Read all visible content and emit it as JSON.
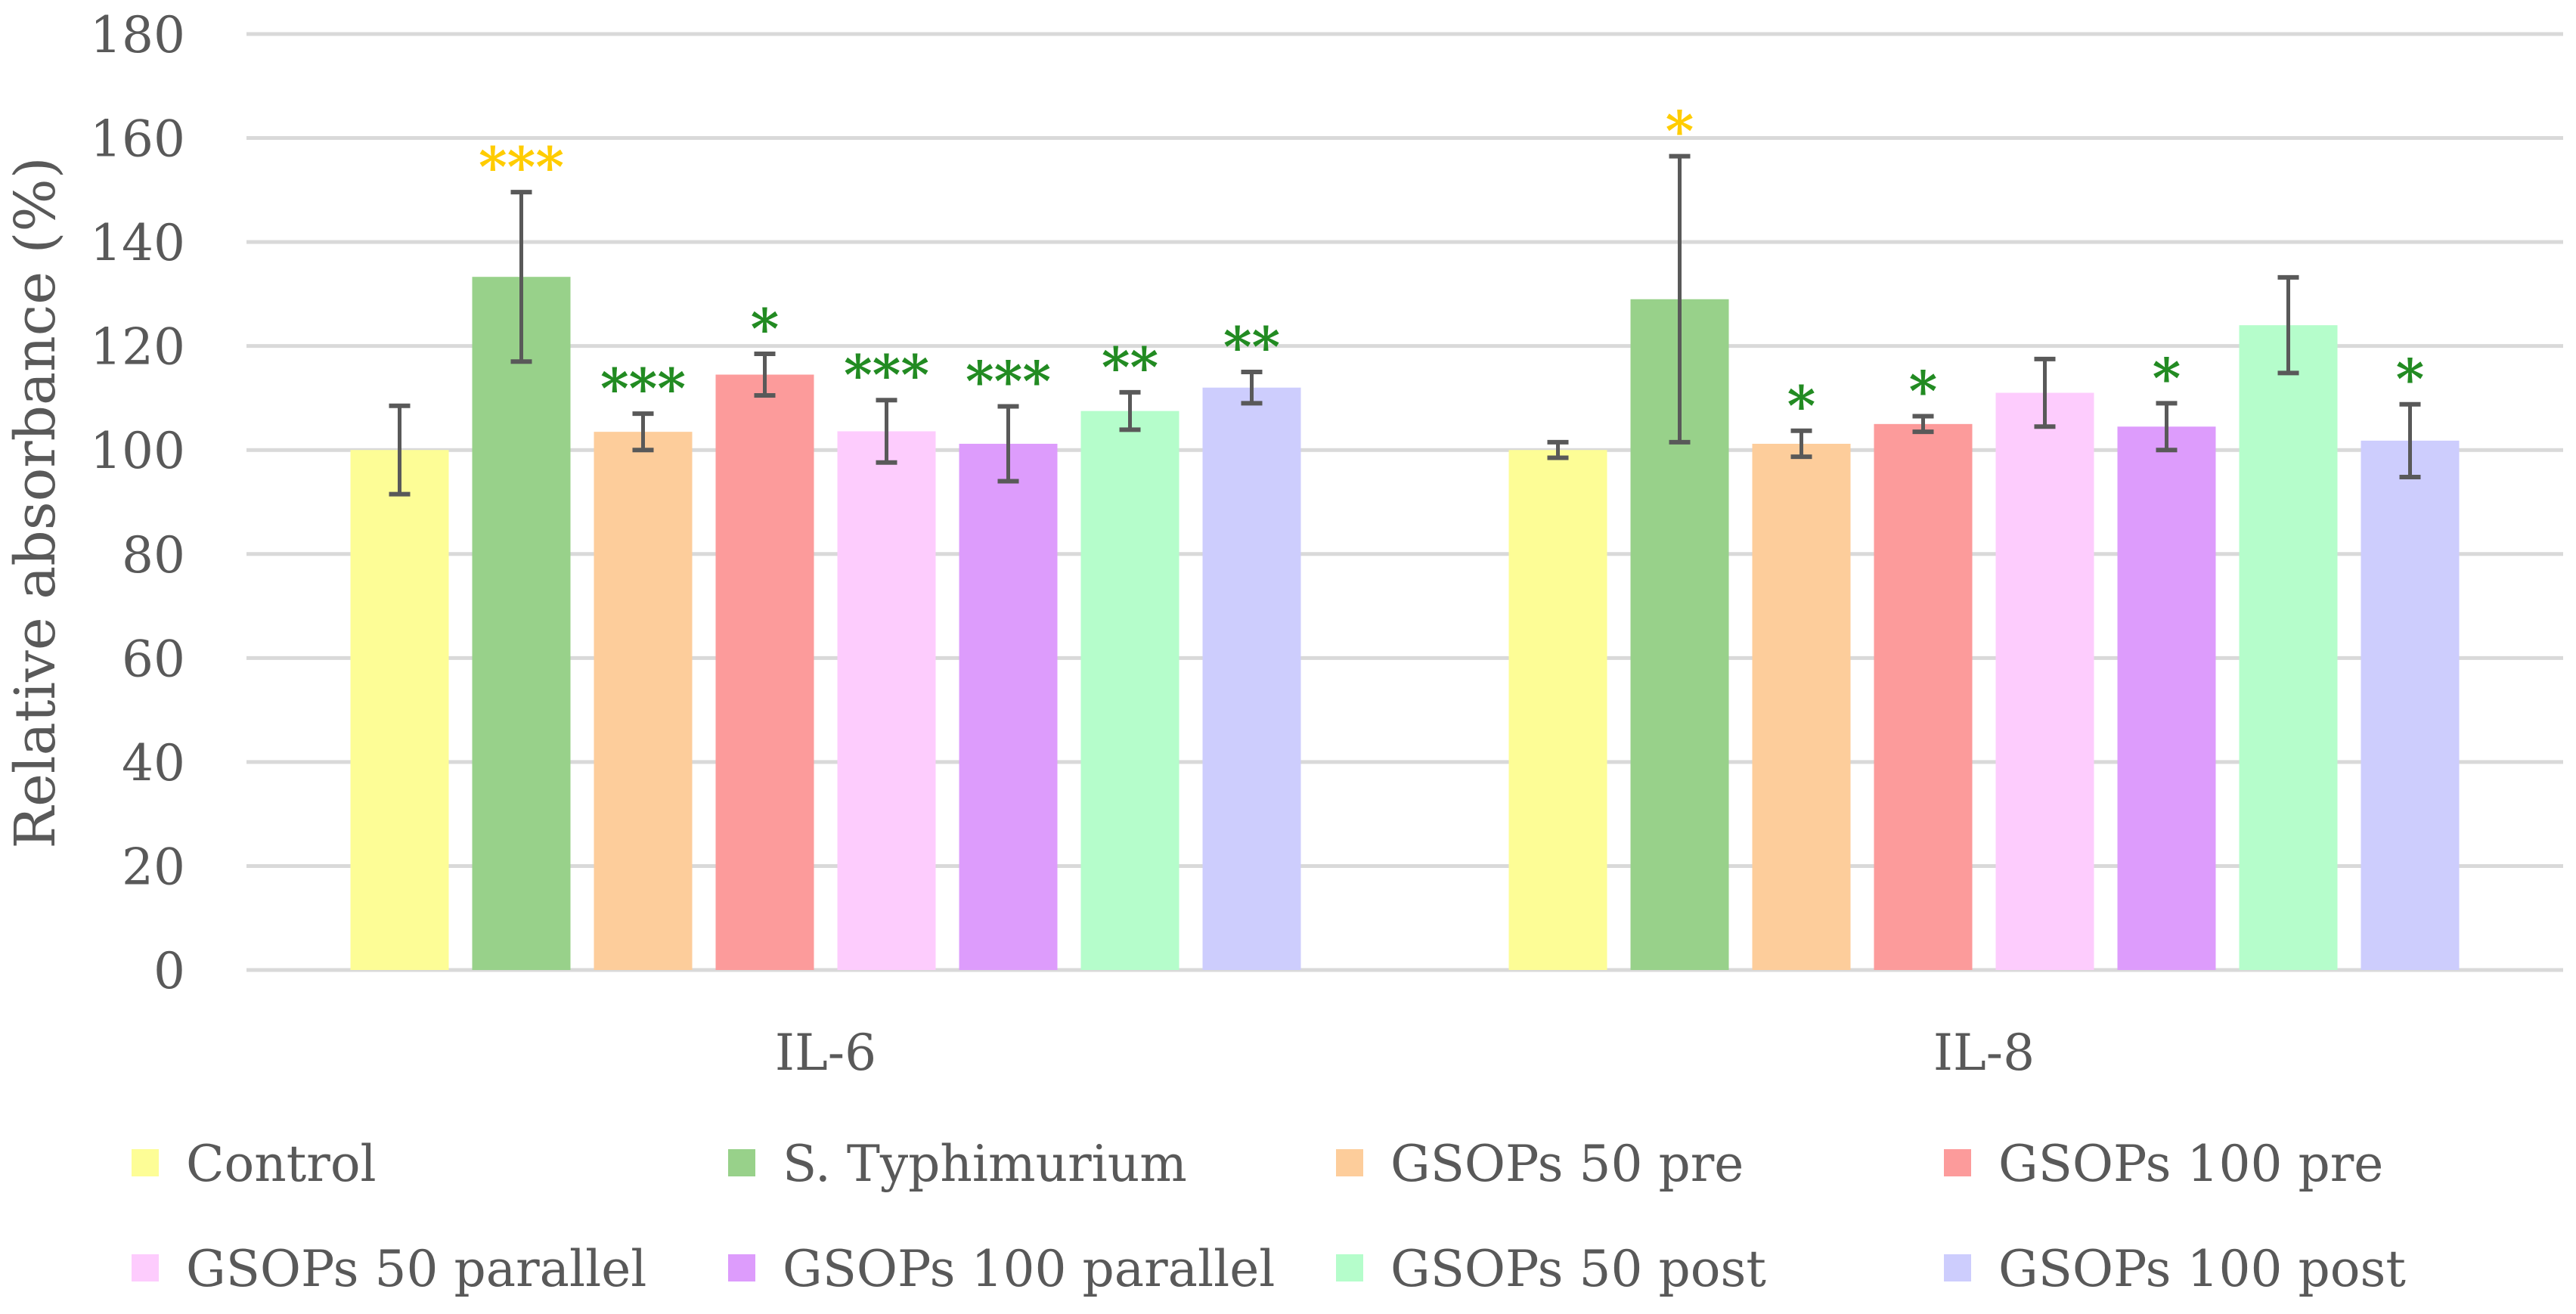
{
  "chart_data": {
    "type": "bar",
    "title": "",
    "xlabel": "",
    "ylabel": "Relative absorbance (%)",
    "ylim": [
      0,
      180
    ],
    "yticks": [
      0,
      20,
      40,
      60,
      80,
      100,
      120,
      140,
      160,
      180
    ],
    "grid": true,
    "legend_position": "bottom",
    "categories": [
      "IL-6",
      "IL-8"
    ],
    "series": [
      {
        "name": "Control",
        "color": "#FDFD96",
        "values": [
          100,
          100
        ],
        "errors": [
          8.5,
          1.5
        ],
        "annotations": [
          "",
          ""
        ],
        "annotation_colors": [
          "",
          ""
        ]
      },
      {
        "name": "S. Typhimurium",
        "color": "#98D18A",
        "values": [
          133.3,
          129
        ],
        "errors": [
          16.3,
          27.5
        ],
        "annotations": [
          "***",
          "*"
        ],
        "annotation_colors": [
          "#FFCC00",
          "#FFCC00"
        ]
      },
      {
        "name": "GSOPs 50 pre",
        "color": "#FDCD9B",
        "values": [
          103.5,
          101.2
        ],
        "errors": [
          3.5,
          2.5
        ],
        "annotations": [
          "***",
          "*"
        ],
        "annotation_colors": [
          "#228B22",
          "#228B22"
        ]
      },
      {
        "name": "GSOPs 100 pre",
        "color": "#FC9B9B",
        "values": [
          114.5,
          105
        ],
        "errors": [
          4,
          1.5
        ],
        "annotations": [
          "*",
          "*"
        ],
        "annotation_colors": [
          "#228B22",
          "#228B22"
        ]
      },
      {
        "name": "GSOPs 50 parallel",
        "color": "#FDCCFD",
        "values": [
          103.6,
          111
        ],
        "errors": [
          6,
          6.5
        ],
        "annotations": [
          "***",
          ""
        ],
        "annotation_colors": [
          "#228B22",
          ""
        ]
      },
      {
        "name": "GSOPs 100 parallel",
        "color": "#DD9CFC",
        "values": [
          101.2,
          104.5
        ],
        "errors": [
          7.2,
          4.5
        ],
        "annotations": [
          "***",
          "*"
        ],
        "annotation_colors": [
          "#228B22",
          "#228B22"
        ]
      },
      {
        "name": "GSOPs 50 post",
        "color": "#B5FDCB",
        "values": [
          107.5,
          124
        ],
        "errors": [
          3.6,
          9.2
        ],
        "annotations": [
          "**",
          ""
        ],
        "annotation_colors": [
          "#228B22",
          ""
        ]
      },
      {
        "name": "GSOPs 100 post",
        "color": "#CDCDFD",
        "values": [
          112,
          101.8
        ],
        "errors": [
          3,
          7
        ],
        "annotations": [
          "**",
          "*"
        ],
        "annotation_colors": [
          "#228B22",
          "#228B22"
        ]
      }
    ]
  }
}
